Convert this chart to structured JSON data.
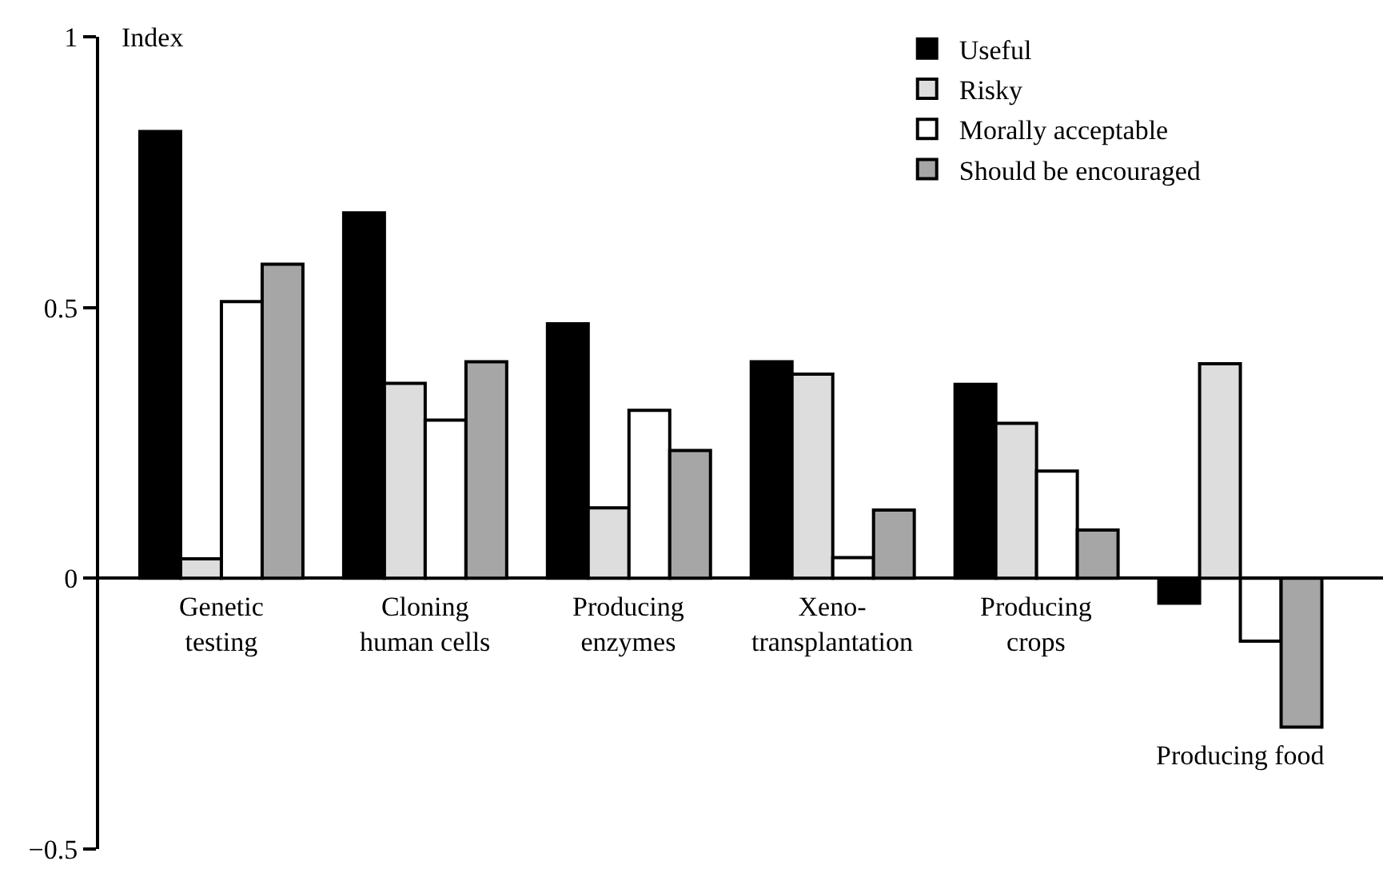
{
  "chart_data": {
    "type": "bar",
    "ylabel": "Index",
    "categories": [
      "Genetic\ntesting",
      "Cloning\nhuman cells",
      "Producing\nenzymes",
      "Xeno-\ntransplantation",
      "Producing\ncrops",
      "Producing food"
    ],
    "series": [
      {
        "name": "Useful",
        "color": "#000000",
        "values": [
          0.825,
          0.675,
          0.47,
          0.4,
          0.358,
          -0.046
        ]
      },
      {
        "name": "Risky",
        "color": "#dddddd",
        "values": [
          0.036,
          0.36,
          0.13,
          0.377,
          0.286,
          0.396
        ]
      },
      {
        "name": "Morally acceptable",
        "color": "#ffffff",
        "values": [
          0.511,
          0.292,
          0.31,
          0.038,
          0.198,
          -0.116
        ]
      },
      {
        "name": "Should be encouraged",
        "color": "#a6a6a6",
        "values": [
          0.58,
          0.4,
          0.236,
          0.126,
          0.089,
          -0.275
        ]
      }
    ],
    "ylim": [
      -0.5,
      1
    ],
    "yticks": [
      {
        "value": -0.5,
        "label": "−0.5"
      },
      0,
      0.5,
      1
    ],
    "legend": "top right",
    "tick_labels": "y"
  }
}
